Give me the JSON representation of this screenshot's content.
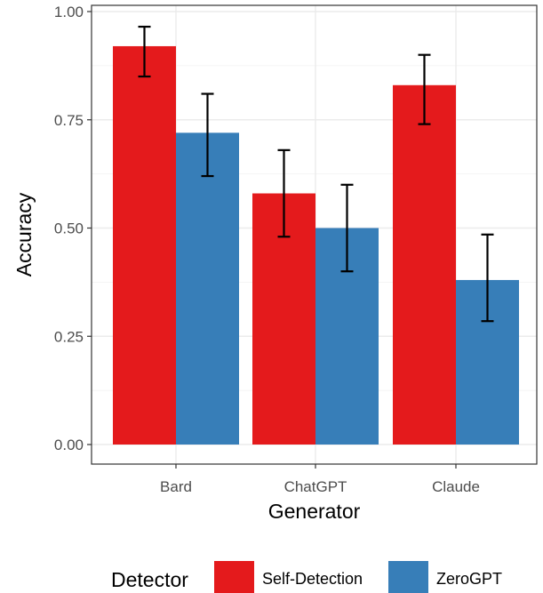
{
  "chart_data": {
    "type": "bar",
    "categories": [
      "Bard",
      "ChatGPT",
      "Claude"
    ],
    "series": [
      {
        "name": "Self-Detection",
        "color": "#e41a1c",
        "values": [
          0.92,
          0.58,
          0.83
        ],
        "error_low": [
          0.85,
          0.48,
          0.74
        ],
        "error_high": [
          0.965,
          0.68,
          0.9
        ]
      },
      {
        "name": "ZeroGPT",
        "color": "#377eb8",
        "values": [
          0.72,
          0.5,
          0.38
        ],
        "error_low": [
          0.62,
          0.4,
          0.285
        ],
        "error_high": [
          0.81,
          0.6,
          0.485
        ]
      }
    ],
    "xlabel": "Generator",
    "ylabel": "Accuracy",
    "ylim": [
      0,
      1
    ],
    "yticks": [
      "0.00",
      "0.25",
      "0.50",
      "0.75",
      "1.00"
    ],
    "ytick_values": [
      0,
      0.25,
      0.5,
      0.75,
      1.0
    ],
    "legend_title": "Detector",
    "legend_position": "bottom",
    "grid": true
  }
}
